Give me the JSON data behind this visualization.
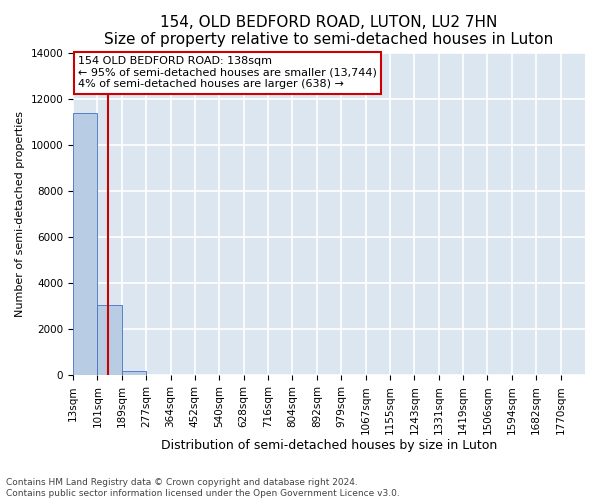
{
  "title": "154, OLD BEDFORD ROAD, LUTON, LU2 7HN",
  "subtitle": "Size of property relative to semi-detached houses in Luton",
  "xlabel": "Distribution of semi-detached houses by size in Luton",
  "ylabel": "Number of semi-detached properties",
  "footnote1": "Contains HM Land Registry data © Crown copyright and database right 2024.",
  "footnote2": "Contains public sector information licensed under the Open Government Licence v3.0.",
  "annotation_line1": "154 OLD BEDFORD ROAD: 138sqm",
  "annotation_line2": "← 95% of semi-detached houses are smaller (13,744)",
  "annotation_line3": "4% of semi-detached houses are larger (638) →",
  "bar_labels": [
    "13sqm",
    "101sqm",
    "189sqm",
    "277sqm",
    "364sqm",
    "452sqm",
    "540sqm",
    "628sqm",
    "716sqm",
    "804sqm",
    "892sqm",
    "979sqm",
    "1067sqm",
    "1155sqm",
    "1243sqm",
    "1331sqm",
    "1419sqm",
    "1506sqm",
    "1594sqm",
    "1682sqm",
    "1770sqm"
  ],
  "bar_values": [
    11400,
    3050,
    205,
    18,
    5,
    2,
    1,
    1,
    1,
    0,
    0,
    0,
    0,
    0,
    0,
    0,
    0,
    0,
    0,
    0,
    0
  ],
  "bar_color": "#b8cce4",
  "bar_edge_color": "#4472c4",
  "red_line_color": "#cc0000",
  "background_color": "#dce6f1",
  "grid_color": "#ffffff",
  "annotation_box_facecolor": "#ffffff",
  "annotation_box_edgecolor": "#cc0000",
  "ylim": [
    0,
    14000
  ],
  "yticks": [
    0,
    2000,
    4000,
    6000,
    8000,
    10000,
    12000,
    14000
  ],
  "title_fontsize": 11,
  "subtitle_fontsize": 9.5,
  "ylabel_fontsize": 8,
  "xlabel_fontsize": 9,
  "tick_fontsize": 7.5,
  "annotation_fontsize": 8,
  "footnote_fontsize": 6.5
}
